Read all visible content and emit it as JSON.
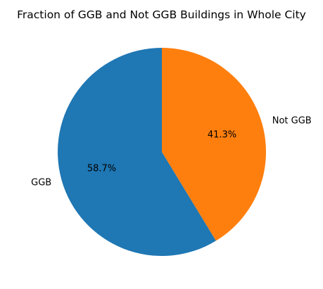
{
  "chart_data": {
    "type": "pie",
    "title": "Fraction of GGB and Not GGB Buildings in Whole City",
    "categories": [
      "GGB",
      "Not GGB"
    ],
    "values": [
      58.7,
      41.3
    ],
    "value_labels": [
      "58.7%",
      "41.3%"
    ],
    "colors": [
      "#1f77b4",
      "#ff7f0e"
    ],
    "start_angle_deg": 90,
    "direction": "counterclockwise",
    "legend": "none"
  }
}
